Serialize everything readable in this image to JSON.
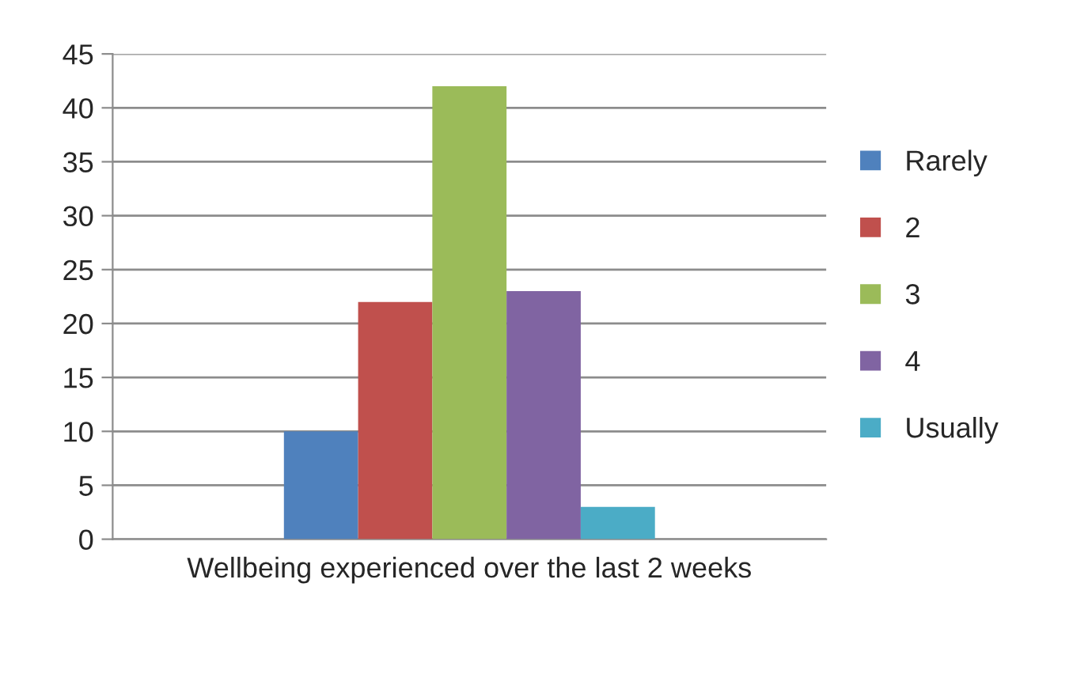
{
  "chart_data": {
    "type": "bar",
    "categories": [
      "Wellbeing experienced over the last 2 weeks"
    ],
    "series": [
      {
        "name": "Rarely",
        "color": "#4f81bd",
        "values": [
          10
        ]
      },
      {
        "name": "2",
        "color": "#c0504d",
        "values": [
          22
        ]
      },
      {
        "name": "3",
        "color": "#9bbb59",
        "values": [
          42
        ]
      },
      {
        "name": "4",
        "color": "#8064a2",
        "values": [
          23
        ]
      },
      {
        "name": "Usually",
        "color": "#4bacc6",
        "values": [
          3
        ]
      }
    ],
    "ylim": [
      0,
      45
    ],
    "yticks": [
      0,
      5,
      10,
      15,
      20,
      25,
      30,
      35,
      40,
      45
    ],
    "grid": "y",
    "legend": "right"
  }
}
